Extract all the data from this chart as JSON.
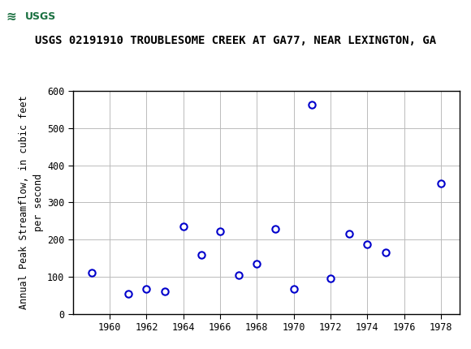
{
  "title": "USGS 02191910 TROUBLESOME CREEK AT GA77, NEAR LEXINGTON, GA",
  "ylabel": "Annual Peak Streamflow, in cubic feet\nper second",
  "years": [
    1959,
    1961,
    1962,
    1963,
    1964,
    1965,
    1966,
    1967,
    1968,
    1969,
    1970,
    1971,
    1972,
    1973,
    1974,
    1975,
    1978
  ],
  "values": [
    112,
    55,
    68,
    60,
    235,
    160,
    222,
    105,
    135,
    228,
    68,
    563,
    97,
    215,
    188,
    165,
    350
  ],
  "xlim": [
    1958,
    1979
  ],
  "ylim": [
    0,
    600
  ],
  "yticks": [
    0,
    100,
    200,
    300,
    400,
    500,
    600
  ],
  "xticks": [
    1960,
    1962,
    1964,
    1966,
    1968,
    1970,
    1972,
    1974,
    1976,
    1978
  ],
  "marker_color": "#0000CC",
  "marker_size": 6,
  "marker_lw": 1.5,
  "grid_color": "#bbbbbb",
  "bg_color": "#ffffff",
  "header_bg": "#1a7040",
  "title_fontsize": 10,
  "tick_fontsize": 8.5,
  "ylabel_fontsize": 8.5
}
